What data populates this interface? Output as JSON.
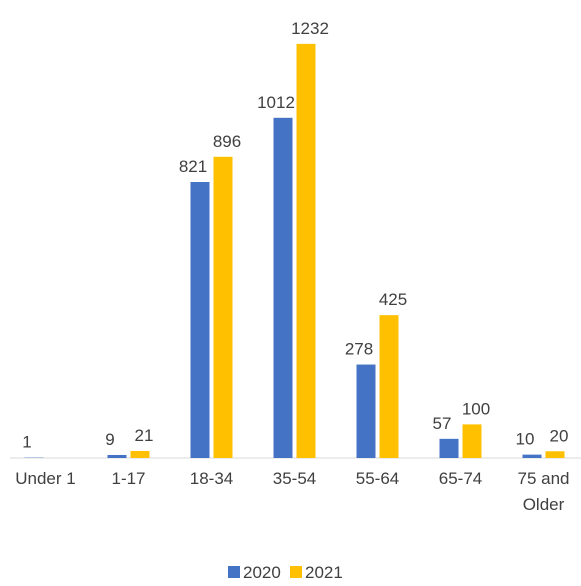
{
  "chart_data": {
    "type": "bar",
    "categories": [
      "Under 1",
      "1-17",
      "18-34",
      "35-54",
      "55-64",
      "65-74",
      "75 and Older"
    ],
    "series": [
      {
        "name": "2020",
        "color": "#4472c4",
        "values": [
          1,
          9,
          821,
          1012,
          278,
          57,
          10
        ]
      },
      {
        "name": "2021",
        "color": "#ffc000",
        "values": [
          null,
          21,
          896,
          1232,
          425,
          100,
          20
        ]
      }
    ],
    "ylim": [
      0,
      1300
    ]
  }
}
